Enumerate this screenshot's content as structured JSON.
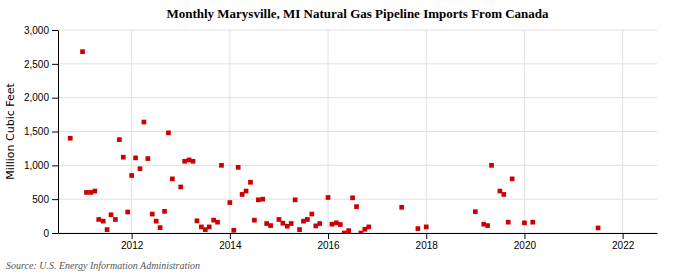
{
  "chart_data": {
    "type": "scatter",
    "title": "Monthly Marysville, MI Natural Gas Pipeline Imports From Canada",
    "y_label": "Million Cubic Feet",
    "annotations": [
      "Source: U.S. Energy Information Administration"
    ],
    "color": "#cc0000",
    "marker": "square",
    "grid": true,
    "xlim": [
      2010.5,
      2022.7
    ],
    "xticks": [
      2012,
      2014,
      2016,
      2018,
      2020,
      2022
    ],
    "ylim": [
      0,
      3000
    ],
    "yticks": [
      0,
      500,
      {
        "value": 1000,
        "label": "1,000"
      },
      {
        "value": 1500,
        "label": "1,500"
      },
      {
        "value": 2000,
        "label": "2,000"
      },
      {
        "value": 2500,
        "label": "2,500"
      },
      {
        "value": 3000,
        "label": "3,000"
      }
    ],
    "x": [
      2010.75,
      2011.0,
      2011.08,
      2011.17,
      2011.25,
      2011.33,
      2011.42,
      2011.5,
      2011.58,
      2011.67,
      2011.75,
      2011.83,
      2011.92,
      2012.0,
      2012.08,
      2012.17,
      2012.25,
      2012.33,
      2012.42,
      2012.5,
      2012.58,
      2012.67,
      2012.75,
      2012.83,
      2013.0,
      2013.08,
      2013.17,
      2013.25,
      2013.33,
      2013.42,
      2013.5,
      2013.58,
      2013.67,
      2013.75,
      2013.83,
      2014.0,
      2014.08,
      2014.17,
      2014.25,
      2014.33,
      2014.42,
      2014.5,
      2014.58,
      2014.67,
      2014.75,
      2014.83,
      2015.0,
      2015.08,
      2015.17,
      2015.25,
      2015.33,
      2015.42,
      2015.5,
      2015.58,
      2015.67,
      2015.75,
      2015.83,
      2016.0,
      2016.08,
      2016.17,
      2016.25,
      2016.33,
      2016.42,
      2016.5,
      2016.58,
      2016.67,
      2016.75,
      2016.83,
      2017.5,
      2017.83,
      2018.0,
      2019.0,
      2019.17,
      2019.25,
      2019.33,
      2019.5,
      2019.58,
      2019.67,
      2019.75,
      2020.0,
      2020.17,
      2021.5
    ],
    "values": [
      1400,
      2680,
      600,
      600,
      620,
      200,
      175,
      50,
      270,
      200,
      1380,
      1120,
      310,
      850,
      1110,
      950,
      1640,
      1100,
      280,
      175,
      80,
      320,
      1480,
      800,
      680,
      1060,
      1080,
      1060,
      180,
      90,
      50,
      90,
      190,
      160,
      1000,
      450,
      40,
      970,
      570,
      620,
      750,
      190,
      490,
      500,
      140,
      110,
      200,
      145,
      100,
      140,
      490,
      50,
      175,
      200,
      280,
      105,
      140,
      525,
      130,
      150,
      125,
      0,
      35,
      520,
      390,
      0,
      55,
      90,
      380,
      65,
      90,
      315,
      130,
      110,
      1000,
      620,
      570,
      160,
      800,
      150,
      160,
      75
    ]
  }
}
